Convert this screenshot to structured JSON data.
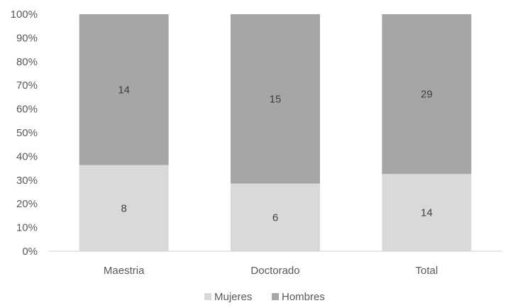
{
  "chart_data": {
    "type": "bar",
    "stacked": "percent",
    "categories": [
      "Maestria",
      "Doctorado",
      "Total"
    ],
    "series": [
      {
        "name": "Mujeres",
        "values": [
          8,
          6,
          14
        ],
        "color": "#d9d9d9"
      },
      {
        "name": "Hombres",
        "values": [
          14,
          15,
          29
        ],
        "color": "#a6a6a6"
      }
    ],
    "y_ticks": [
      "0%",
      "10%",
      "20%",
      "30%",
      "40%",
      "50%",
      "60%",
      "70%",
      "80%",
      "90%",
      "100%"
    ],
    "ylim": [
      0,
      100
    ],
    "legend_position": "bottom",
    "grid": false
  }
}
